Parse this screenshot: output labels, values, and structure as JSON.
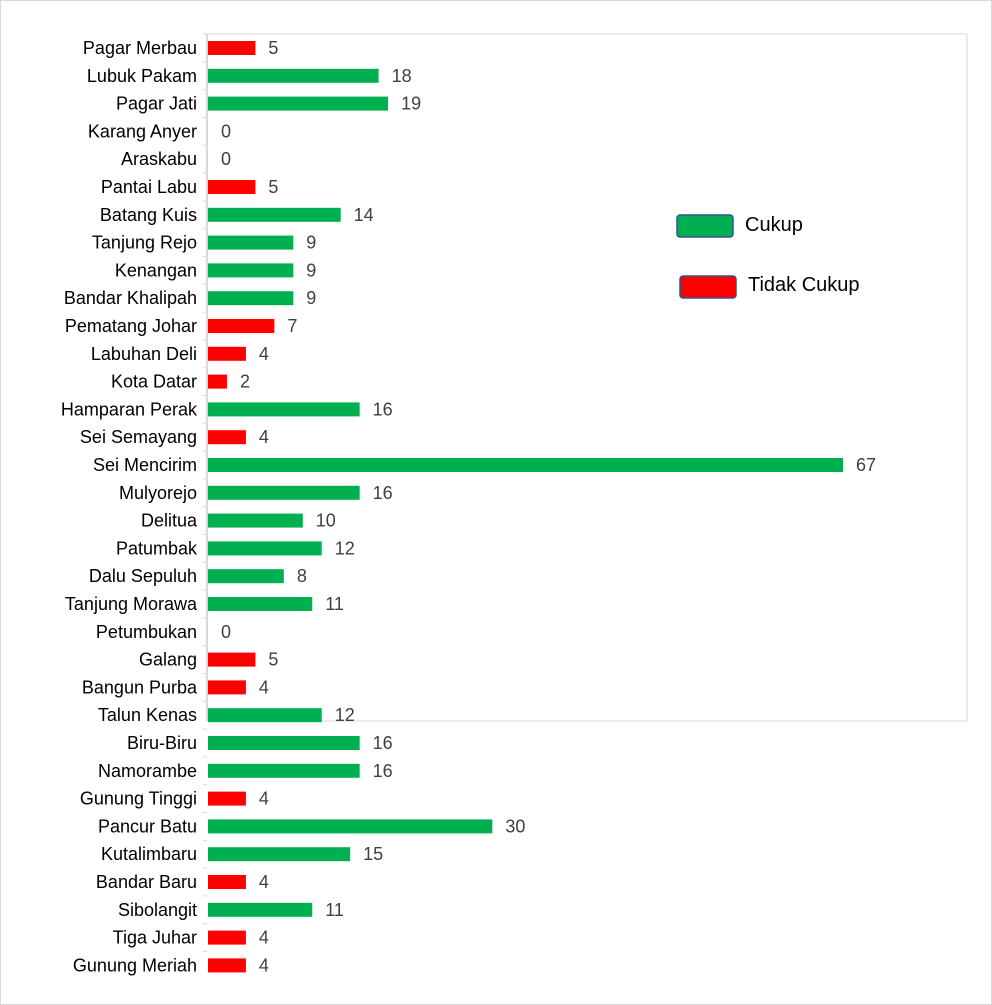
{
  "chart_data": {
    "type": "bar",
    "orientation": "horizontal",
    "title": "",
    "xlabel": "",
    "ylabel": "",
    "xlim": [
      0,
      70
    ],
    "grid": false,
    "legend": {
      "position": "right",
      "entries": [
        {
          "label": "Cukup",
          "color": "#00b050"
        },
        {
          "label": "Tidak Cukup",
          "color": "#ff0000"
        }
      ]
    },
    "categories": [
      "Pagar Merbau",
      "Lubuk Pakam",
      "Pagar Jati",
      "Karang Anyer",
      "Araskabu",
      "Pantai Labu",
      "Batang Kuis",
      "Tanjung Rejo",
      "Kenangan",
      "Bandar Khalipah",
      "Pematang Johar",
      "Labuhan Deli",
      "Kota Datar",
      "Hamparan Perak",
      "Sei Semayang",
      "Sei Mencirim",
      "Mulyorejo",
      "Delitua",
      "Patumbak",
      "Dalu Sepuluh",
      "Tanjung Morawa",
      "Petumbukan",
      "Galang",
      "Bangun Purba",
      "Talun Kenas",
      "Biru-Biru",
      "Namorambe",
      "Gunung Tinggi",
      "Pancur Batu",
      "Kutalimbaru",
      "Bandar Baru",
      "Sibolangit",
      "Tiga Juhar",
      "Gunung Meriah"
    ],
    "values": [
      5,
      18,
      19,
      0,
      0,
      5,
      14,
      9,
      9,
      9,
      7,
      4,
      2,
      16,
      4,
      67,
      16,
      10,
      12,
      8,
      11,
      0,
      5,
      4,
      12,
      16,
      16,
      4,
      30,
      15,
      4,
      11,
      4,
      4
    ],
    "status": [
      "Tidak Cukup",
      "Cukup",
      "Cukup",
      "Tidak Cukup",
      "Tidak Cukup",
      "Tidak Cukup",
      "Cukup",
      "Cukup",
      "Cukup",
      "Cukup",
      "Tidak Cukup",
      "Tidak Cukup",
      "Tidak Cukup",
      "Cukup",
      "Tidak Cukup",
      "Cukup",
      "Cukup",
      "Cukup",
      "Cukup",
      "Cukup",
      "Cukup",
      "Tidak Cukup",
      "Tidak Cukup",
      "Tidak Cukup",
      "Cukup",
      "Cukup",
      "Cukup",
      "Tidak Cukup",
      "Cukup",
      "Cukup",
      "Tidak Cukup",
      "Cukup",
      "Tidak Cukup",
      "Tidak Cukup"
    ],
    "value_labels_shown": true
  }
}
